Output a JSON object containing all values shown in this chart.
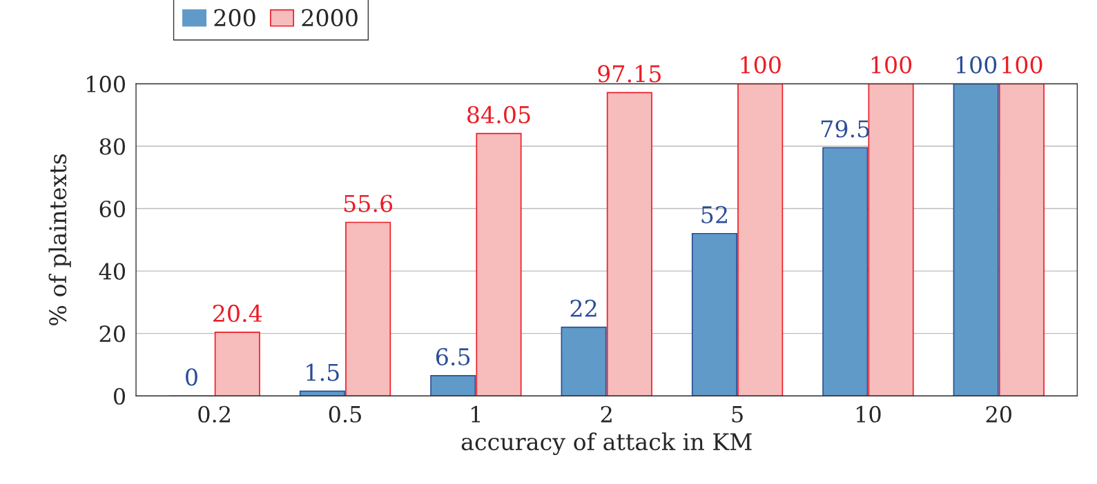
{
  "chart_data": {
    "type": "bar",
    "xlabel": "accuracy of attack in KM",
    "ylabel": "% of plaintexts",
    "categories": [
      "0.2",
      "0.5",
      "1",
      "2",
      "5",
      "10",
      "20"
    ],
    "series": [
      {
        "name": "200",
        "color": "#5f9ac9",
        "values": [
          0,
          1.5,
          6.5,
          22,
          52,
          79.5,
          100
        ]
      },
      {
        "name": "2000",
        "color": "#f7bcbc",
        "values": [
          20.4,
          55.6,
          84.05,
          97.15,
          100,
          100,
          100
        ]
      }
    ],
    "ylim": [
      0,
      100
    ],
    "yticks": [
      0,
      20,
      40,
      60,
      80,
      100
    ],
    "grid": "y",
    "legend": "top left",
    "data_labels": true
  }
}
